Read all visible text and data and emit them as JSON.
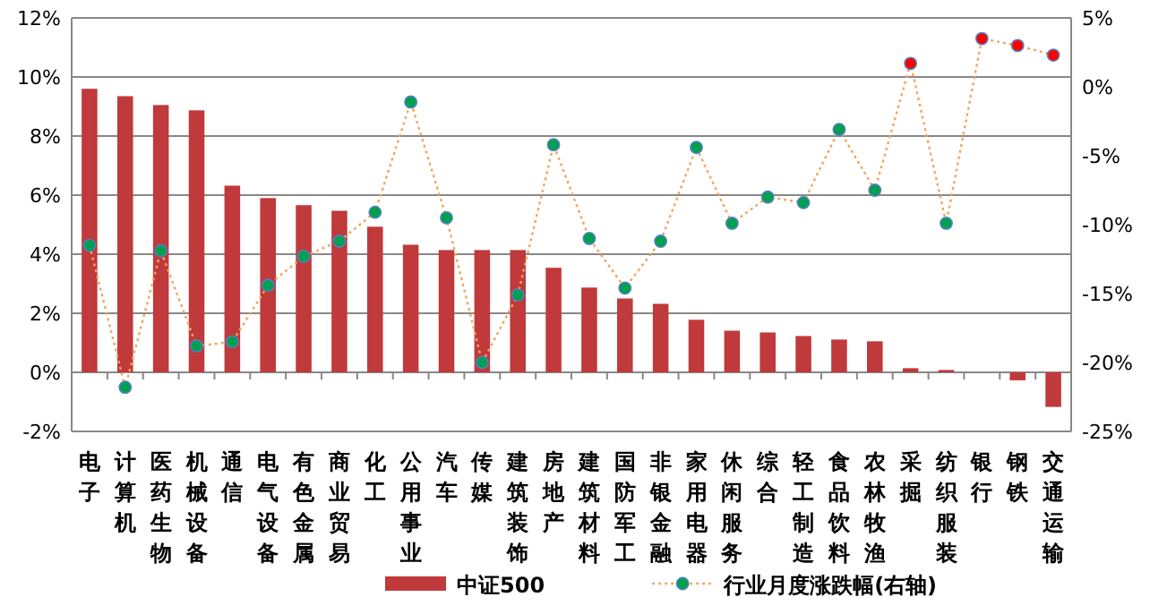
{
  "chart_data": {
    "type": "bar",
    "categories": [
      "电子",
      "计算机",
      "医药生物",
      "机械设备",
      "通信",
      "电气设备",
      "有色金属",
      "商业贸易",
      "化工",
      "公用事业",
      "汽车",
      "传媒",
      "建筑装饰",
      "房地产",
      "建筑材料",
      "国防军工",
      "非银金融",
      "家用电器",
      "休闲服务",
      "综合",
      "轻工制造",
      "食品饮料",
      "农林牧渔",
      "采掘",
      "纺织服装",
      "银行",
      "钢铁",
      "交通运输"
    ],
    "series": [
      {
        "name": "中证500",
        "color": "#c0393b",
        "values": [
          9.6,
          9.35,
          9.05,
          8.87,
          6.32,
          5.9,
          5.66,
          5.47,
          4.93,
          4.32,
          4.14,
          4.14,
          4.14,
          3.54,
          2.87,
          2.5,
          2.32,
          1.78,
          1.41,
          1.35,
          1.23,
          1.11,
          1.05,
          0.14,
          0.08,
          0,
          -0.27,
          -1.17
        ]
      },
      {
        "name": "行业月度涨跌幅(右轴)",
        "type": "line",
        "axis": "y2",
        "color": "#f5a35c",
        "marker": "circle",
        "line_style": "dotted",
        "colors": [
          "#00a050",
          "#00a050",
          "#00a050",
          "#00a050",
          "#00a050",
          "#00a050",
          "#00a050",
          "#00a050",
          "#00a050",
          "#00a050",
          "#00a050",
          "#00a050",
          "#00a050",
          "#00a050",
          "#00a050",
          "#00a050",
          "#00a050",
          "#00a050",
          "#00a050",
          "#00a050",
          "#00a050",
          "#00a050",
          "#00a050",
          "#ff0000",
          "#00a050",
          "#ff0000",
          "#ff0000",
          "#ff0000"
        ],
        "values": [
          -11.5,
          -21.8,
          -11.9,
          -18.8,
          -18.5,
          -14.4,
          -12.3,
          -11.2,
          -9.1,
          -1.1,
          -9.5,
          -20,
          -15.1,
          -4.2,
          -11,
          -14.6,
          -11.2,
          -4.4,
          -9.9,
          -8,
          -8.4,
          -3.1,
          -7.5,
          1.7,
          -9.9,
          3.5,
          3,
          2.3
        ]
      }
    ],
    "ylim": [
      -2,
      12
    ],
    "yticks": [
      {
        "value": -2,
        "label": "-2%"
      },
      {
        "value": 0,
        "label": "0%"
      },
      {
        "value": 2,
        "label": "2%"
      },
      {
        "value": 4,
        "label": "4%"
      },
      {
        "value": 6,
        "label": "6%"
      },
      {
        "value": 8,
        "label": "8%"
      },
      {
        "value": 10,
        "label": "10%"
      },
      {
        "value": 12,
        "label": "12%"
      }
    ],
    "y2lim": [
      -25,
      5
    ],
    "y2ticks": [
      {
        "value": -25,
        "label": "-25%"
      },
      {
        "value": -20,
        "label": "-20%"
      },
      {
        "value": -15,
        "label": "-15%"
      },
      {
        "value": -10,
        "label": "-10%"
      },
      {
        "value": -5,
        "label": "-5%"
      },
      {
        "value": 0,
        "label": "0%"
      },
      {
        "value": 5,
        "label": "5%"
      }
    ],
    "grid": "y",
    "legend": "bottom"
  }
}
